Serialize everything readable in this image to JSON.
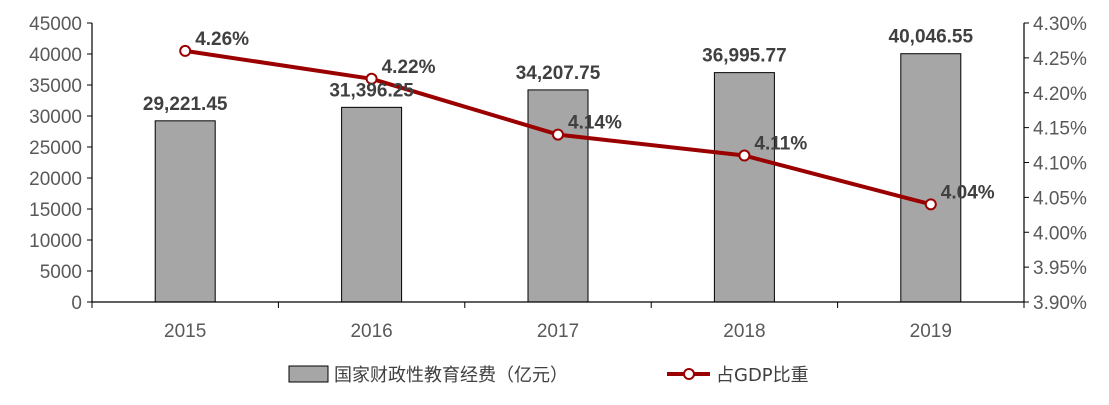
{
  "chart_data": {
    "type": "bar",
    "categories": [
      "2015",
      "2016",
      "2017",
      "2018",
      "2019"
    ],
    "series": [
      {
        "name": "国家财政性教育经费（亿元）",
        "type": "bar",
        "axis": "left",
        "values": [
          29221.45,
          31396.25,
          34207.75,
          36995.77,
          40046.55
        ],
        "labels": [
          "29,221.45",
          "31,396.25",
          "34,207.75",
          "36,995.77",
          "40,046.55"
        ],
        "color": "#a6a6a6"
      },
      {
        "name": "占GDP比重",
        "type": "line",
        "axis": "right",
        "values": [
          4.26,
          4.22,
          4.14,
          4.11,
          4.04
        ],
        "labels": [
          "4.26%",
          "4.22%",
          "4.14%",
          "4.11%",
          "4.04%"
        ],
        "color": "#9b0000"
      }
    ],
    "y_left": {
      "ylim": [
        0,
        45000
      ],
      "ticks": [
        "0",
        "5000",
        "10000",
        "15000",
        "20000",
        "25000",
        "30000",
        "35000",
        "40000",
        "45000"
      ]
    },
    "y_right": {
      "ylim": [
        3.9,
        4.3
      ],
      "ticks": [
        "3.90%",
        "3.95%",
        "4.00%",
        "4.05%",
        "4.10%",
        "4.15%",
        "4.20%",
        "4.25%",
        "4.30%"
      ]
    },
    "grid": false,
    "legend_position": "bottom-center",
    "title": "",
    "xlabel": "",
    "ylabel": ""
  }
}
